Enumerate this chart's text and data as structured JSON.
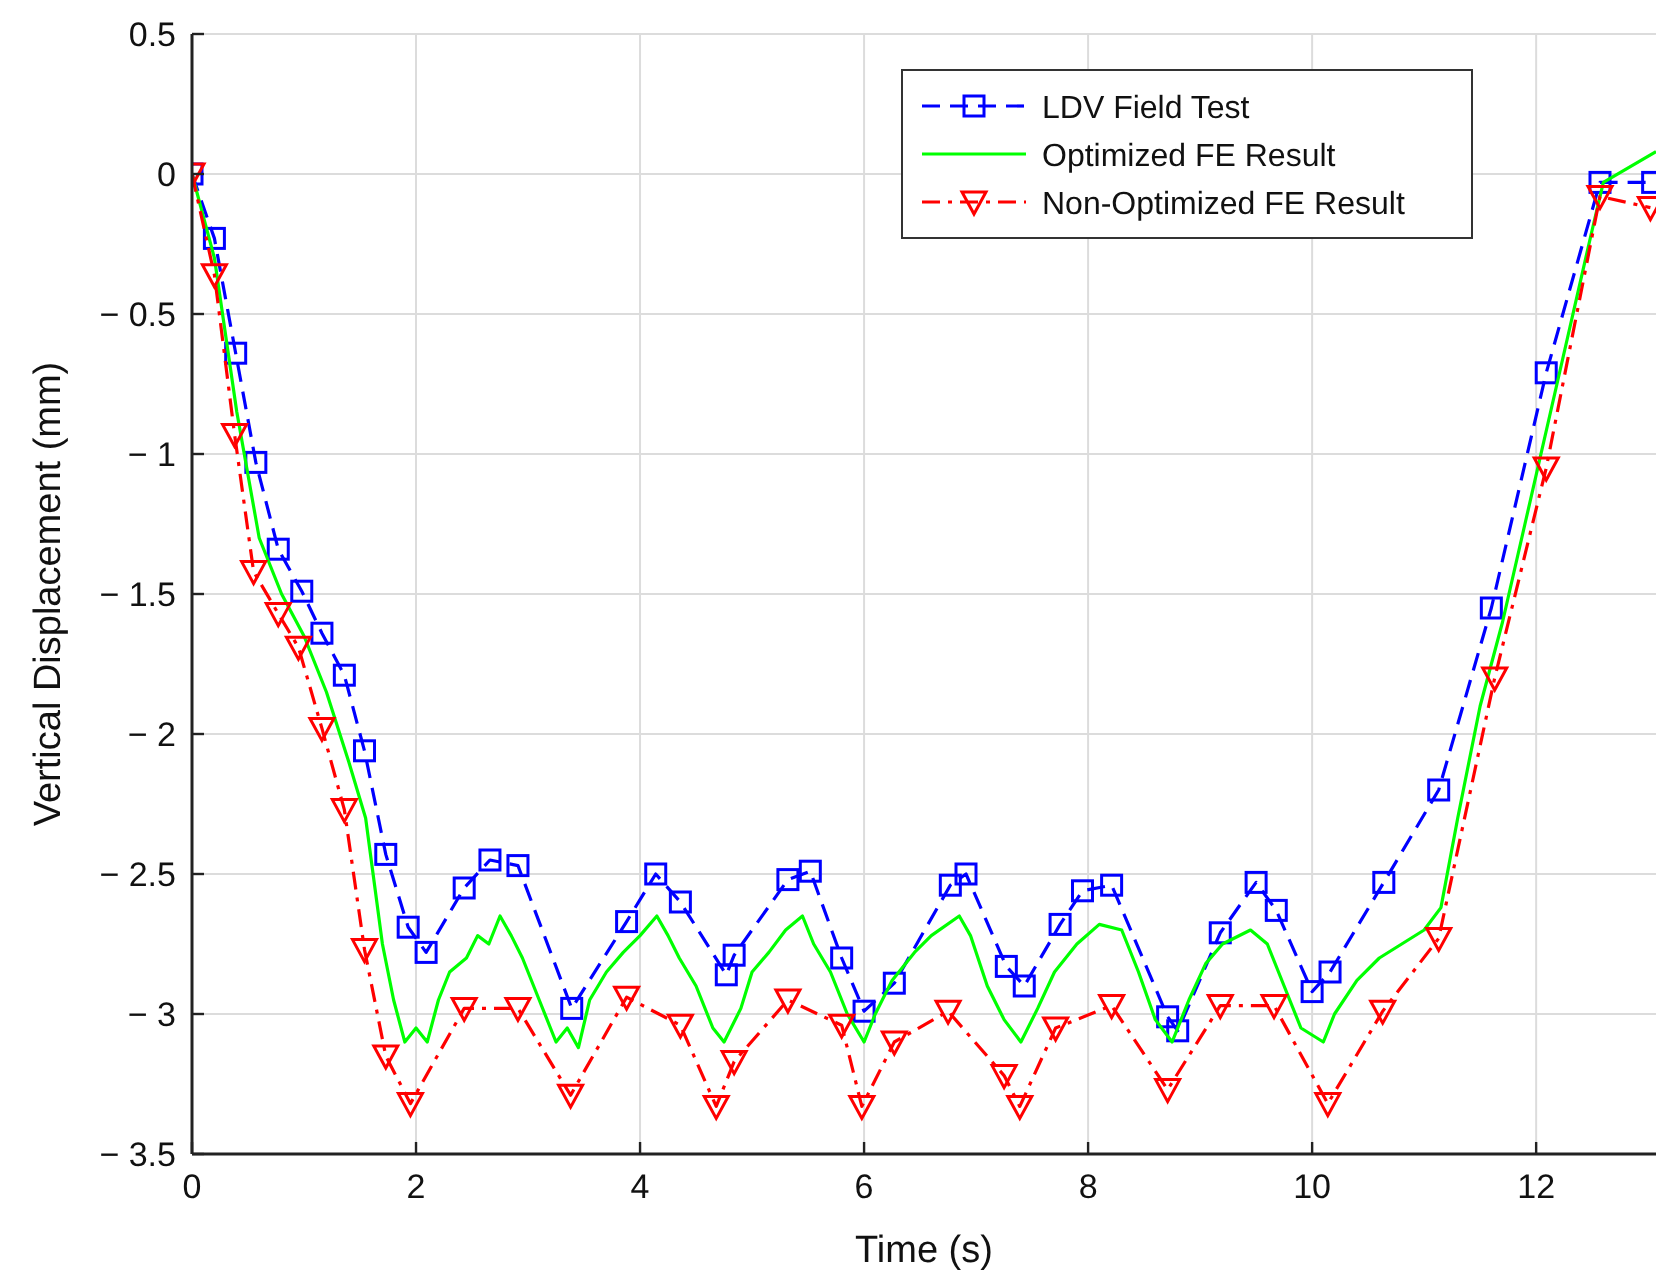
{
  "chart_data": {
    "type": "line",
    "xlabel": "Time (s)",
    "ylabel": "Vertical Displacement (mm)",
    "xlim": [
      0,
      13.07
    ],
    "ylim": [
      -3.5,
      0.5
    ],
    "xticks": [
      0,
      2,
      4,
      6,
      8,
      10,
      12
    ],
    "yticks": [
      -3.5,
      -3,
      -2.5,
      -2,
      -1.5,
      -1,
      -0.5,
      0,
      0.5
    ],
    "grid": true,
    "legend": "top right",
    "series": [
      {
        "name": "LDV Field Test",
        "color": "#0000ff",
        "marker": "square",
        "line_style": "dashed",
        "x": [
          0,
          0.2,
          0.39,
          0.57,
          0.77,
          0.98,
          1.16,
          1.36,
          1.54,
          1.73,
          1.93,
          2.09,
          2.43,
          2.66,
          2.91,
          3.39,
          3.88,
          4.14,
          4.36,
          4.77,
          4.84,
          5.32,
          5.52,
          5.8,
          6.0,
          6.27,
          6.77,
          6.91,
          7.27,
          7.43,
          7.75,
          7.95,
          8.21,
          8.71,
          8.8,
          9.18,
          9.5,
          9.68,
          10.0,
          10.16,
          10.64,
          11.13,
          11.6,
          12.09,
          12.57,
          13.04
        ],
        "values": [
          0,
          -0.23,
          -0.64,
          -1.03,
          -1.34,
          -1.49,
          -1.64,
          -1.79,
          -2.06,
          -2.43,
          -2.69,
          -2.78,
          -2.55,
          -2.45,
          -2.47,
          -2.98,
          -2.67,
          -2.5,
          -2.6,
          -2.86,
          -2.79,
          -2.52,
          -2.49,
          -2.8,
          -2.99,
          -2.89,
          -2.54,
          -2.5,
          -2.83,
          -2.9,
          -2.68,
          -2.56,
          -2.54,
          -3.01,
          -3.06,
          -2.71,
          -2.53,
          -2.63,
          -2.92,
          -2.85,
          -2.53,
          -2.2,
          -1.55,
          -0.71,
          -0.03,
          -0.03
        ]
      },
      {
        "name": "Optimized FE Result",
        "color": "#00ff00",
        "marker": "none",
        "line_style": "solid",
        "x": [
          0,
          0.2,
          0.4,
          0.6,
          0.8,
          1.0,
          1.2,
          1.4,
          1.55,
          1.7,
          1.8,
          1.9,
          2.0,
          2.1,
          2.2,
          2.3,
          2.45,
          2.55,
          2.65,
          2.75,
          2.85,
          2.95,
          3.1,
          3.25,
          3.35,
          3.45,
          3.55,
          3.7,
          3.85,
          4.0,
          4.15,
          4.25,
          4.35,
          4.5,
          4.65,
          4.75,
          4.9,
          5.0,
          5.15,
          5.3,
          5.45,
          5.55,
          5.7,
          5.85,
          6.0,
          6.1,
          6.25,
          6.45,
          6.6,
          6.85,
          6.95,
          7.1,
          7.25,
          7.4,
          7.55,
          7.7,
          7.9,
          8.1,
          8.3,
          8.45,
          8.6,
          8.75,
          8.9,
          9.05,
          9.2,
          9.45,
          9.6,
          9.75,
          9.9,
          10.1,
          10.2,
          10.4,
          10.6,
          10.8,
          11.0,
          11.15,
          11.3,
          11.5,
          11.7,
          11.9,
          12.1,
          12.3,
          12.5,
          12.6,
          13.07
        ],
        "values": [
          0,
          -0.3,
          -0.85,
          -1.3,
          -1.5,
          -1.65,
          -1.85,
          -2.1,
          -2.3,
          -2.75,
          -2.95,
          -3.1,
          -3.05,
          -3.1,
          -2.95,
          -2.85,
          -2.8,
          -2.72,
          -2.75,
          -2.65,
          -2.72,
          -2.8,
          -2.95,
          -3.1,
          -3.05,
          -3.12,
          -2.95,
          -2.85,
          -2.78,
          -2.72,
          -2.65,
          -2.72,
          -2.8,
          -2.9,
          -3.05,
          -3.1,
          -2.98,
          -2.85,
          -2.78,
          -2.7,
          -2.65,
          -2.75,
          -2.85,
          -3.0,
          -3.1,
          -3.0,
          -2.88,
          -2.78,
          -2.72,
          -2.65,
          -2.72,
          -2.9,
          -3.02,
          -3.1,
          -2.98,
          -2.85,
          -2.75,
          -2.68,
          -2.7,
          -2.85,
          -3.02,
          -3.1,
          -2.95,
          -2.82,
          -2.75,
          -2.7,
          -2.75,
          -2.9,
          -3.05,
          -3.1,
          -3.0,
          -2.88,
          -2.8,
          -2.75,
          -2.7,
          -2.62,
          -2.3,
          -1.9,
          -1.6,
          -1.25,
          -0.9,
          -0.55,
          -0.2,
          -0.03,
          0.08
        ]
      },
      {
        "name": "Non-Optimized FE Result",
        "color": "#ff0000",
        "marker": "triangle",
        "line_style": "dotted",
        "x": [
          0,
          0.2,
          0.38,
          0.55,
          0.77,
          0.95,
          1.16,
          1.36,
          1.54,
          1.73,
          1.95,
          2.43,
          2.91,
          3.38,
          3.88,
          4.36,
          4.68,
          4.84,
          5.32,
          5.8,
          5.98,
          6.27,
          6.75,
          7.25,
          7.39,
          7.71,
          8.21,
          8.71,
          9.18,
          9.66,
          10.14,
          10.63,
          11.13,
          11.63,
          12.09,
          12.57,
          13.02
        ],
        "values": [
          0,
          -0.36,
          -0.93,
          -1.42,
          -1.57,
          -1.69,
          -1.98,
          -2.27,
          -2.77,
          -3.15,
          -3.32,
          -2.98,
          -2.98,
          -3.29,
          -2.94,
          -3.04,
          -3.33,
          -3.17,
          -2.95,
          -3.04,
          -3.33,
          -3.1,
          -2.99,
          -3.22,
          -3.33,
          -3.05,
          -2.97,
          -3.27,
          -2.97,
          -2.97,
          -3.32,
          -2.99,
          -2.73,
          -1.8,
          -1.05,
          -0.08,
          -0.12
        ]
      }
    ]
  }
}
